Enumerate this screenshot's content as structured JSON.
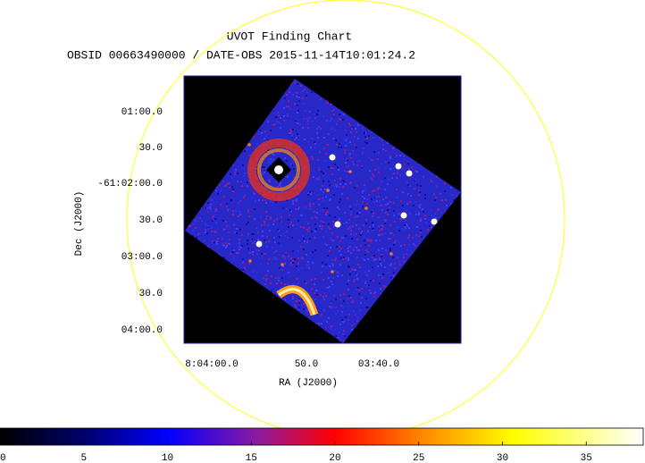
{
  "chart_data": {
    "type": "image",
    "title": "UVOT Finding Chart",
    "subtitle": "OBSID 00663490000 / DATE-OBS 2015-11-14T10:01:24.2",
    "x_label": "RA (J2000)",
    "y_label": "Dec (J2000)",
    "ra_labels": [
      "8:04:00.0",
      "50.0",
      "03:40.0"
    ],
    "dec_labels": [
      "01:00.0",
      "30.0",
      "-61:02:00.0",
      "30.0",
      "03:00.0",
      "30.0",
      "04:00.0"
    ],
    "colorbar": {
      "lim": [
        0,
        38.4
      ],
      "ticks": [
        0,
        5,
        10,
        15,
        20,
        25,
        30,
        35
      ]
    }
  }
}
